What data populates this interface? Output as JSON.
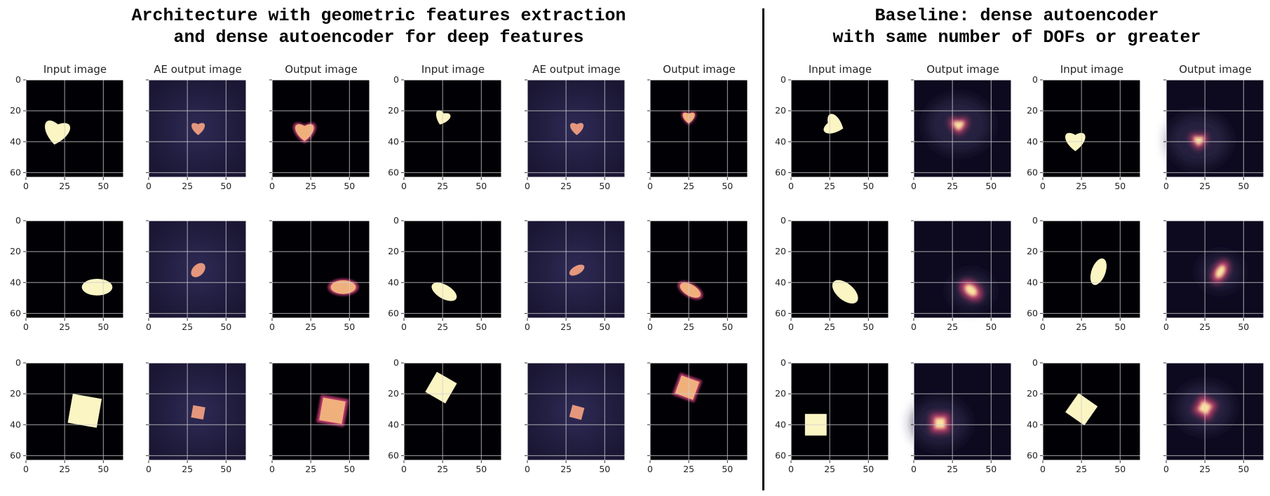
{
  "sections": [
    {
      "line1": "Architecture with geometric features extraction",
      "line2": "and dense autoencoder for deep features"
    },
    {
      "line1": "Baseline: dense autoencoder",
      "line2": "with same number of DOFs or greater"
    }
  ],
  "column_titles": [
    "Input image",
    "AE output image",
    "Output image",
    "Input image",
    "AE output image",
    "Output image",
    "Input image",
    "Output image",
    "Input image",
    "Output image"
  ],
  "axis": {
    "xticks": [
      "0",
      "25",
      "50"
    ],
    "yticks": [
      "0",
      "20",
      "40",
      "60"
    ],
    "xlim": [
      0,
      63
    ],
    "ylim": [
      0,
      63
    ]
  },
  "colors": {
    "background_black": "#000005",
    "ae_background": "#1a1633",
    "ae_background_mid": "#2e2a55",
    "shape_fill": "#fbf5c4",
    "ae_shape_fill": "#e4977d",
    "gridline": "#cfcfcf"
  },
  "colormap": "magma",
  "rows": [
    {
      "shape": "heart",
      "panels": [
        {
          "kind": "input",
          "cx": 20,
          "cy": 33,
          "size": 19,
          "angle": 10
        },
        {
          "kind": "ae",
          "cx": 32,
          "cy": 31,
          "size": 10,
          "angle": 0
        },
        {
          "kind": "output",
          "cx": 21,
          "cy": 33,
          "size": 17,
          "angle": 0
        },
        {
          "kind": "input",
          "cx": 25,
          "cy": 24,
          "size": 11,
          "angle": 20
        },
        {
          "kind": "ae",
          "cx": 32,
          "cy": 31,
          "size": 10,
          "angle": 0
        },
        {
          "kind": "output",
          "cx": 25,
          "cy": 24,
          "size": 11,
          "angle": 0
        },
        {
          "kind": "input",
          "cx": 27,
          "cy": 29,
          "size": 15,
          "angle": -70
        },
        {
          "kind": "blurred",
          "cx": 29,
          "cy": 29,
          "size": 14,
          "angle": 0
        },
        {
          "kind": "input",
          "cx": 21,
          "cy": 39,
          "size": 15,
          "angle": 0
        },
        {
          "kind": "blurred",
          "cx": 21,
          "cy": 39,
          "size": 13,
          "angle": 0
        }
      ]
    },
    {
      "shape": "ellipse",
      "panels": [
        {
          "kind": "input",
          "cx": 46,
          "cy": 43,
          "size": 11,
          "ry": 6,
          "angle": 0
        },
        {
          "kind": "ae",
          "cx": 32,
          "cy": 32,
          "size": 6,
          "ry": 4,
          "angle": -45
        },
        {
          "kind": "output",
          "cx": 46,
          "cy": 43,
          "size": 11,
          "ry": 6,
          "angle": 0
        },
        {
          "kind": "input",
          "cx": 26,
          "cy": 46,
          "size": 10,
          "ry": 5,
          "angle": 30
        },
        {
          "kind": "ae",
          "cx": 32,
          "cy": 32,
          "size": 6,
          "ry": 3,
          "angle": -30
        },
        {
          "kind": "output",
          "cx": 26,
          "cy": 45,
          "size": 10,
          "ry": 5,
          "angle": 30
        },
        {
          "kind": "input",
          "cx": 35,
          "cy": 46,
          "size": 11,
          "ry": 6,
          "angle": 40
        },
        {
          "kind": "blurred",
          "cx": 37,
          "cy": 45,
          "size": 9,
          "ry": 6,
          "angle": 40
        },
        {
          "kind": "input",
          "cx": 36,
          "cy": 33,
          "size": 10,
          "ry": 5,
          "angle": -70
        },
        {
          "kind": "blurred",
          "cx": 35,
          "cy": 33,
          "size": 9,
          "ry": 5,
          "angle": -60
        }
      ]
    },
    {
      "shape": "square",
      "panels": [
        {
          "kind": "input",
          "cx": 38,
          "cy": 31,
          "size": 19,
          "angle": 10
        },
        {
          "kind": "ae",
          "cx": 32,
          "cy": 32,
          "size": 8,
          "angle": 10
        },
        {
          "kind": "output",
          "cx": 39,
          "cy": 31,
          "size": 18,
          "angle": 10
        },
        {
          "kind": "input",
          "cx": 24,
          "cy": 16,
          "size": 15,
          "angle": 30
        },
        {
          "kind": "ae",
          "cx": 32,
          "cy": 32,
          "size": 8,
          "angle": 15
        },
        {
          "kind": "output",
          "cx": 24,
          "cy": 16,
          "size": 15,
          "angle": 20
        },
        {
          "kind": "input",
          "cx": 16,
          "cy": 40,
          "size": 14,
          "angle": 0
        },
        {
          "kind": "blurred",
          "cx": 17,
          "cy": 39,
          "size": 12,
          "angle": 0
        },
        {
          "kind": "input",
          "cx": 25,
          "cy": 30,
          "size": 15,
          "angle": 35
        },
        {
          "kind": "blurred",
          "cx": 25,
          "cy": 29,
          "size": 12,
          "angle": 30
        }
      ]
    }
  ]
}
